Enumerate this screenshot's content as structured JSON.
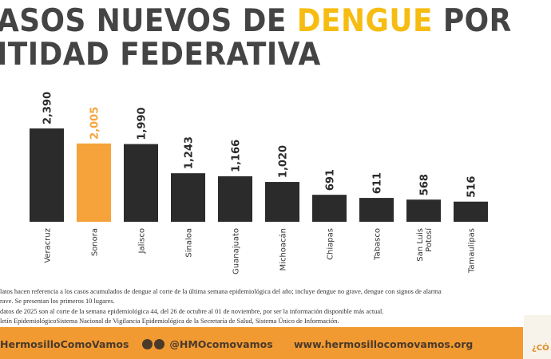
{
  "title": {
    "part1": "ASOS NUEVOS DE ",
    "highlight": "DENGUE",
    "part2": " POR",
    "line2": "ITIDAD FEDERATIVA"
  },
  "chart_data": {
    "type": "bar",
    "categories": [
      "Veracruz",
      "Sonora",
      "Jalisco",
      "Sinaloa",
      "Guanajuato",
      "Michoacán",
      "Chiapas",
      "Tabasco",
      "San Luis Potosí",
      "Tamaulipas"
    ],
    "values": [
      2390,
      2005,
      1990,
      1243,
      1166,
      1020,
      691,
      611,
      568,
      516
    ],
    "value_labels": [
      "2,390",
      "2,005",
      "1,990",
      "1,243",
      "1,166",
      "1,020",
      "691",
      "611",
      "568",
      "516"
    ],
    "highlight_index": 1,
    "colors": {
      "default": "#2b2b2b",
      "highlight": "#f5a33a"
    },
    "ylim": [
      0,
      2390
    ],
    "grid": false
  },
  "notes": [
    "latos hacen referencia a los casos acumulados de dengue al corte de la última semana epidemiológica del año; incluye dengue no grave, dengue con signos de alarma",
    "rave. Se presentan los primeros 10 lugares.",
    "datos de 2025 son al corte de la semana epidemiológica 44, del 26 de octubre al 01 de noviembre, por ser la información disponible más actual.",
    "letín EpidemiológicoSistema Nacional de Vigilancia Epidemiológica de la Secretaría de Salud, Sistema Único de Información."
  ],
  "footer": {
    "facebook": "HermosilloComoVamos",
    "social": "@HMOcomovamos",
    "web": "www.hermosillocomovamos.org",
    "side": "¿CÓ"
  }
}
